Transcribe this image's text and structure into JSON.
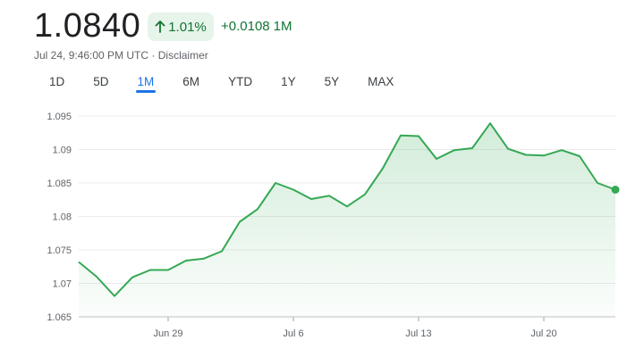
{
  "header": {
    "price": "1.0840",
    "change_percent": "1.01%",
    "change_value": "+0.0108",
    "change_period": "1M",
    "timestamp": "Jul 24, 9:46:00 PM UTC",
    "separator": " · ",
    "disclaimer": "Disclaimer"
  },
  "tabs": [
    {
      "label": "1D",
      "active": false
    },
    {
      "label": "5D",
      "active": false
    },
    {
      "label": "1M",
      "active": true
    },
    {
      "label": "6M",
      "active": false
    },
    {
      "label": "YTD",
      "active": false
    },
    {
      "label": "1Y",
      "active": false
    },
    {
      "label": "5Y",
      "active": false
    },
    {
      "label": "MAX",
      "active": false
    }
  ],
  "colors": {
    "line": "#34a853",
    "positive_text": "#137333",
    "chip_bg": "#e6f4ea",
    "active_tab": "#1a73e8",
    "grid": "#ebebeb"
  },
  "chart_data": {
    "type": "area",
    "title": "",
    "xlabel": "",
    "ylabel": "",
    "ylim": [
      1.065,
      1.095
    ],
    "y_ticks": [
      "1.095",
      "1.09",
      "1.085",
      "1.08",
      "1.075",
      "1.07",
      "1.065"
    ],
    "x_ticks": [
      "Jun 29",
      "Jul 6",
      "Jul 13",
      "Jul 20"
    ],
    "x": [
      "Jun 24",
      "Jun 25",
      "Jun 26",
      "Jun 27",
      "Jun 28",
      "Jun 29",
      "Jun 30",
      "Jul 1",
      "Jul 2",
      "Jul 3",
      "Jul 4",
      "Jul 5",
      "Jul 6",
      "Jul 7",
      "Jul 8",
      "Jul 9",
      "Jul 10",
      "Jul 11",
      "Jul 12",
      "Jul 13",
      "Jul 14",
      "Jul 15",
      "Jul 16",
      "Jul 17",
      "Jul 18",
      "Jul 19",
      "Jul 20",
      "Jul 21",
      "Jul 22",
      "Jul 23",
      "Jul 24"
    ],
    "values": [
      1.0732,
      1.071,
      1.0681,
      1.0709,
      1.072,
      1.072,
      1.0734,
      1.0737,
      1.0748,
      1.0792,
      1.0811,
      1.085,
      1.084,
      1.0826,
      1.0831,
      1.0815,
      1.0833,
      1.0872,
      1.0921,
      1.092,
      1.0886,
      1.0899,
      1.0902,
      1.0939,
      1.0901,
      1.0892,
      1.0891,
      1.0899,
      1.089,
      1.085,
      1.084
    ],
    "grid": true,
    "last_point_marker": true
  }
}
